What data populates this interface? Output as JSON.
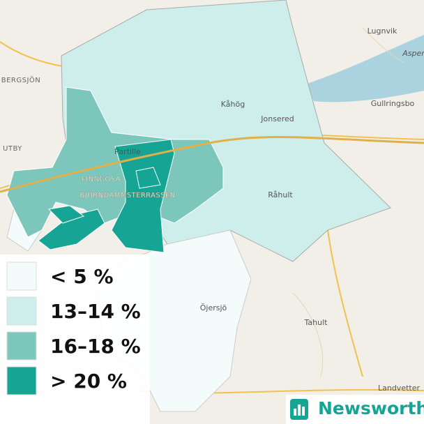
{
  "map": {
    "places": [
      "Lugnvik",
      "Asper",
      "BERGSJÖN",
      "Kåhög",
      "Jonsered",
      "Gullringsbo",
      "UTBY",
      "Partille",
      "FINNGÖSA",
      "BJÖRNDAMMSTERRASSEN",
      "Råhult",
      "Öjersjö",
      "Tahult",
      "Landvetter"
    ]
  },
  "legend": {
    "items": [
      {
        "label": "< 5 %",
        "color": "#f3fbfb"
      },
      {
        "label": "13–14 %",
        "color": "#cdeeea"
      },
      {
        "label": "16–18 %",
        "color": "#7cc6bc"
      },
      {
        "label": "> 20 %",
        "color": "#16a595"
      }
    ]
  },
  "logo": {
    "text": "Newsworthy"
  }
}
